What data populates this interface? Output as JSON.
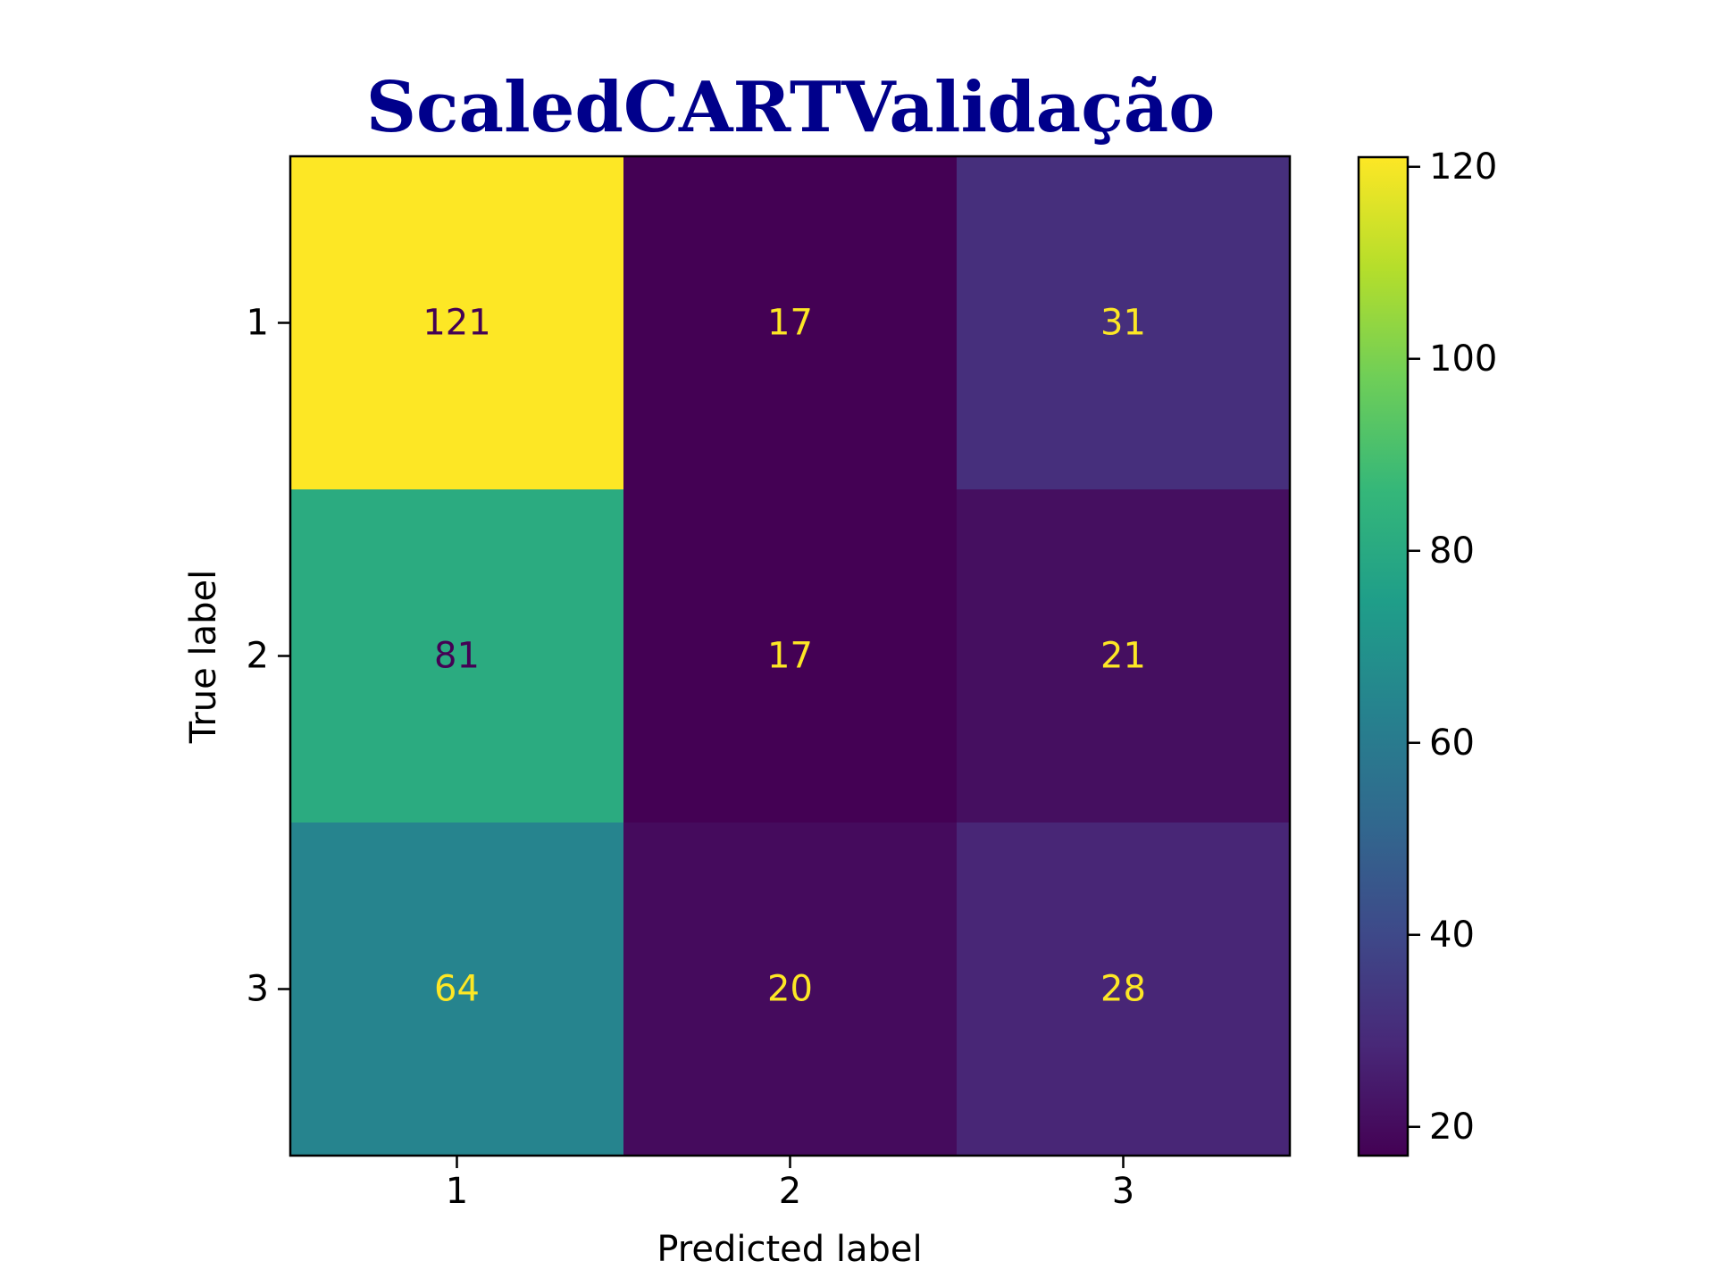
{
  "chart_data": {
    "type": "heatmap",
    "title": "ScaledCARTValidação",
    "title_color": "#00008b",
    "xlabel": "Predicted label",
    "ylabel": "True label",
    "x_categories": [
      "1",
      "2",
      "3"
    ],
    "y_categories": [
      "1",
      "2",
      "3"
    ],
    "values": [
      [
        121,
        17,
        31
      ],
      [
        81,
        17,
        21
      ],
      [
        64,
        20,
        28
      ]
    ],
    "colormap": "viridis",
    "color_range": [
      17,
      121
    ],
    "colorbar_ticks": [
      20,
      40,
      60,
      80,
      100,
      120
    ],
    "text_color_dark": "#440154",
    "text_color_light": "#fde725"
  }
}
